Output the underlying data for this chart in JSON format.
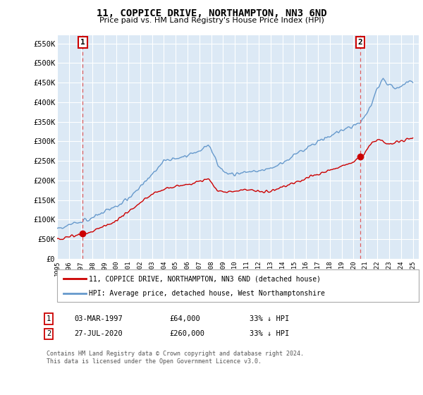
{
  "title": "11, COPPICE DRIVE, NORTHAMPTON, NN3 6ND",
  "subtitle": "Price paid vs. HM Land Registry's House Price Index (HPI)",
  "background_color": "#dce9f5",
  "plot_bg_color": "#dce9f5",
  "grid_color": "#ffffff",
  "ylabel_values": [
    0,
    50000,
    100000,
    150000,
    200000,
    250000,
    300000,
    350000,
    400000,
    450000,
    500000,
    550000
  ],
  "ylabel_labels": [
    "£0",
    "£50K",
    "£100K",
    "£150K",
    "£200K",
    "£250K",
    "£300K",
    "£350K",
    "£400K",
    "£450K",
    "£500K",
    "£550K"
  ],
  "xmin": 1995.0,
  "xmax": 2025.5,
  "ymin": 0,
  "ymax": 570000,
  "transaction1_date": 1997.17,
  "transaction1_price": 64000,
  "transaction1_label": "1",
  "transaction2_date": 2020.56,
  "transaction2_price": 260000,
  "transaction2_label": "2",
  "line_color_property": "#cc0000",
  "line_color_hpi": "#6699cc",
  "legend_entry1": "11, COPPICE DRIVE, NORTHAMPTON, NN3 6ND (detached house)",
  "legend_entry2": "HPI: Average price, detached house, West Northamptonshire",
  "table_row1": [
    "1",
    "03-MAR-1997",
    "£64,000",
    "33% ↓ HPI"
  ],
  "table_row2": [
    "2",
    "27-JUL-2020",
    "£260,000",
    "33% ↓ HPI"
  ],
  "footer": "Contains HM Land Registry data © Crown copyright and database right 2024.\nThis data is licensed under the Open Government Licence v3.0.",
  "xtick_years": [
    1995,
    1996,
    1997,
    1998,
    1999,
    2000,
    2001,
    2002,
    2003,
    2004,
    2005,
    2006,
    2007,
    2008,
    2009,
    2010,
    2011,
    2012,
    2013,
    2014,
    2015,
    2016,
    2017,
    2018,
    2019,
    2020,
    2021,
    2022,
    2023,
    2024,
    2025
  ]
}
